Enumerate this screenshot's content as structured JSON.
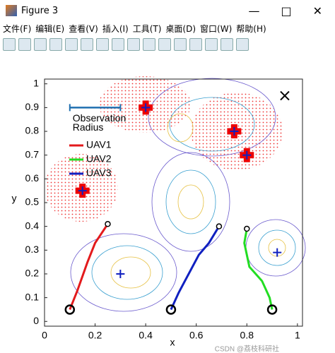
{
  "window": {
    "title": "Figure 3",
    "menu": [
      "文件(F)",
      "编辑(E)",
      "查看(V)",
      "插入(I)",
      "工具(T)",
      "桌面(D)",
      "窗口(W)",
      "帮助(H)"
    ],
    "watermark": "CSDN @荔枝科研社"
  },
  "chart_data": {
    "type": "line",
    "x_label": "x",
    "y_label": "y",
    "xlim": [
      0,
      1.02
    ],
    "ylim": [
      -0.02,
      1.02
    ],
    "xticks": [
      0,
      0.2,
      0.4,
      0.6,
      0.8,
      1
    ],
    "yticks": [
      0,
      0.1,
      0.2,
      0.3,
      0.4,
      0.5,
      0.6,
      0.7,
      0.8,
      0.9,
      1
    ],
    "legend": "upper left",
    "series": [
      {
        "name": "UAV1",
        "color": "#e31a1c",
        "x": [
          0.1,
          0.13,
          0.17,
          0.2,
          0.25
        ],
        "values": [
          0.05,
          0.13,
          0.25,
          0.33,
          0.41
        ]
      },
      {
        "name": "UAV2",
        "color": "#22dd22",
        "x": [
          0.9,
          0.89,
          0.86,
          0.81,
          0.79,
          0.8
        ],
        "values": [
          0.05,
          0.1,
          0.17,
          0.23,
          0.33,
          0.39
        ]
      },
      {
        "name": "UAV3",
        "color": "#1020c0",
        "x": [
          0.5,
          0.53,
          0.57,
          0.61,
          0.65,
          0.69
        ],
        "values": [
          0.05,
          0.12,
          0.2,
          0.28,
          0.33,
          0.4
        ]
      }
    ],
    "targets": {
      "color": "#1020c0",
      "x": [
        0.3,
        0.92,
        0.15,
        0.4,
        0.75,
        0.8
      ],
      "y": [
        0.2,
        0.29,
        0.55,
        0.9,
        0.8,
        0.7
      ]
    },
    "detected": {
      "color": "#ee0000",
      "x": [
        0.15,
        0.4,
        0.75,
        0.8
      ],
      "y": [
        0.55,
        0.9,
        0.8,
        0.7
      ]
    },
    "goal": {
      "x": 0.95,
      "y": 0.95
    },
    "observation_radius": {
      "x": [
        0.1,
        0.3
      ],
      "y": 0.9,
      "color": "#1f6fb0"
    },
    "annotation": [
      "Observation",
      "Radius"
    ]
  }
}
